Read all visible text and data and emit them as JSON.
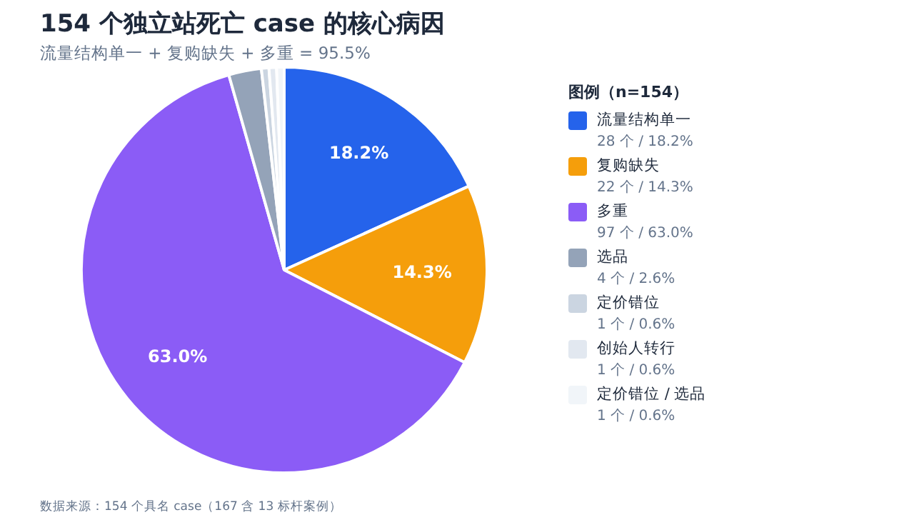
{
  "chart_data": {
    "type": "pie",
    "title": "154 个独立站死亡 case 的核心病因",
    "subtitle": "流量结构单一 + 复购缺失 + 多重 = 95.5%",
    "legend_title": "图例（n=154）",
    "legend": "right",
    "categories": [
      "流量结构单一",
      "复购缺失",
      "多重",
      "选品",
      "定价错位",
      "创始人转行",
      "定价错位 / 选品"
    ],
    "values": [
      18.2,
      14.3,
      63.0,
      2.6,
      0.6,
      0.6,
      0.6
    ],
    "colors": [
      "#2563eb",
      "#f59e0b",
      "#8b5cf6",
      "#94a3b8",
      "#cbd5e1",
      "#e2e8f0",
      "#f1f5f9"
    ],
    "value_labels": [
      "18.2%",
      "14.3%",
      "63.0%",
      null,
      null,
      null,
      null
    ],
    "annotations": [
      "数据来源：154 个具名 case（167 含 13 标杆案例）",
      "28 个 / 18.2%",
      "22 个 / 14.3%",
      "97 个 / 63.0%",
      "4 个 / 2.6%",
      "1 个 / 0.6%",
      "1 个 / 0.6%",
      "1 个 / 0.6%"
    ]
  }
}
